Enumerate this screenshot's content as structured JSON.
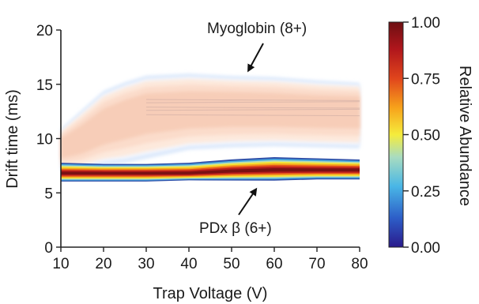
{
  "chart_data": {
    "type": "heatmap",
    "title": "",
    "xlabel": "Trap Voltage (V)",
    "ylabel": "Drift time (ms)",
    "xlim": [
      10,
      80
    ],
    "ylim": [
      0,
      20
    ],
    "x_ticks": [
      10,
      20,
      30,
      40,
      50,
      60,
      70,
      80
    ],
    "y_ticks": [
      0,
      5,
      10,
      15,
      20
    ],
    "x_tick_labels": [
      "10",
      "20",
      "30",
      "40",
      "50",
      "60",
      "70",
      "80"
    ],
    "y_tick_labels": [
      "0",
      "5",
      "10",
      "15",
      "20"
    ],
    "colorbar": {
      "label": "Relative Abundance",
      "min": 0.0,
      "max": 1.0,
      "ticks": [
        0.0,
        0.25,
        0.5,
        0.75,
        1.0
      ],
      "tick_labels": [
        "0.00",
        "0.25",
        "0.50",
        "0.75",
        "1.00"
      ],
      "colormap": [
        "#2a1a8c",
        "#2d5ec8",
        "#49b6e6",
        "#a8dcc0",
        "#f5ec3c",
        "#f7a21b",
        "#e0451c",
        "#b0161c",
        "#6e0f12"
      ]
    },
    "annotations": [
      {
        "text": "Myoglobin (8+)",
        "points_to": {
          "x": 58,
          "y": 15.2
        }
      },
      {
        "text": "PDx β (6+)",
        "points_to": {
          "x": 58,
          "y": 6.5
        }
      }
    ],
    "series": [
      {
        "name": "Myoglobin (8+)",
        "x": [
          10,
          15,
          20,
          25,
          30,
          40,
          50,
          60,
          70,
          80
        ],
        "drift_center": [
          9.2,
          10.0,
          11.2,
          12.0,
          12.6,
          12.8,
          12.9,
          12.8,
          12.7,
          12.7
        ],
        "drift_low": [
          7.2,
          7.3,
          7.8,
          8.0,
          8.4,
          9.2,
          9.4,
          9.5,
          9.4,
          9.3
        ],
        "drift_high": [
          10.8,
          12.5,
          14.2,
          15.0,
          15.6,
          15.8,
          15.6,
          15.5,
          15.2,
          15.0
        ],
        "abundance": [
          0.05,
          0.08,
          0.1,
          0.12,
          0.14,
          0.12,
          0.12,
          0.13,
          0.13,
          0.13
        ]
      },
      {
        "name": "PDx β (6+)",
        "x": [
          10,
          20,
          30,
          40,
          50,
          60,
          70,
          80
        ],
        "drift_center": [
          6.8,
          6.8,
          6.8,
          6.8,
          7.0,
          7.1,
          7.1,
          7.1
        ],
        "drift_low": [
          6.1,
          6.1,
          6.1,
          6.2,
          6.2,
          6.2,
          6.3,
          6.3
        ],
        "drift_high": [
          7.7,
          7.6,
          7.6,
          7.7,
          8.0,
          8.2,
          8.1,
          8.0
        ],
        "abundance": [
          0.97,
          0.98,
          0.98,
          0.98,
          0.98,
          0.99,
          0.99,
          0.99
        ]
      }
    ]
  }
}
